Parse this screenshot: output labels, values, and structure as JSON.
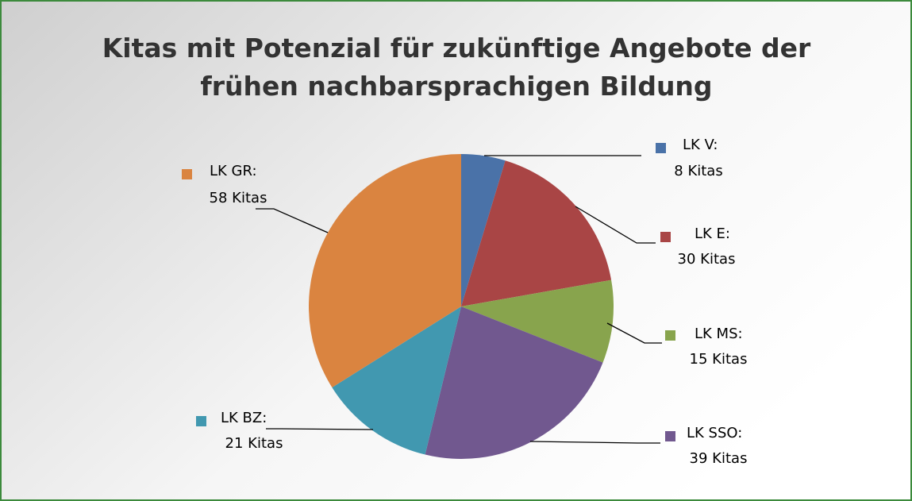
{
  "chart_data": {
    "type": "pie",
    "title": [
      "Kitas mit Potenzial für zukünftige Angebote der",
      "frühen nachbarsprachigen Bildung"
    ],
    "categories": [
      "LK V:",
      "LK E:",
      "LK MS:",
      "LK SSO:",
      "LK BZ:",
      "LK GR:"
    ],
    "values": [
      8,
      30,
      15,
      39,
      21,
      58
    ],
    "value_labels": [
      "8 Kitas",
      "30 Kitas",
      "15 Kitas",
      "39 Kitas",
      "21 Kitas",
      "58 Kitas"
    ],
    "colors": [
      "#4a72a8",
      "#a94545",
      "#88a44d",
      "#71588f",
      "#4198b0",
      "#da8440"
    ]
  }
}
